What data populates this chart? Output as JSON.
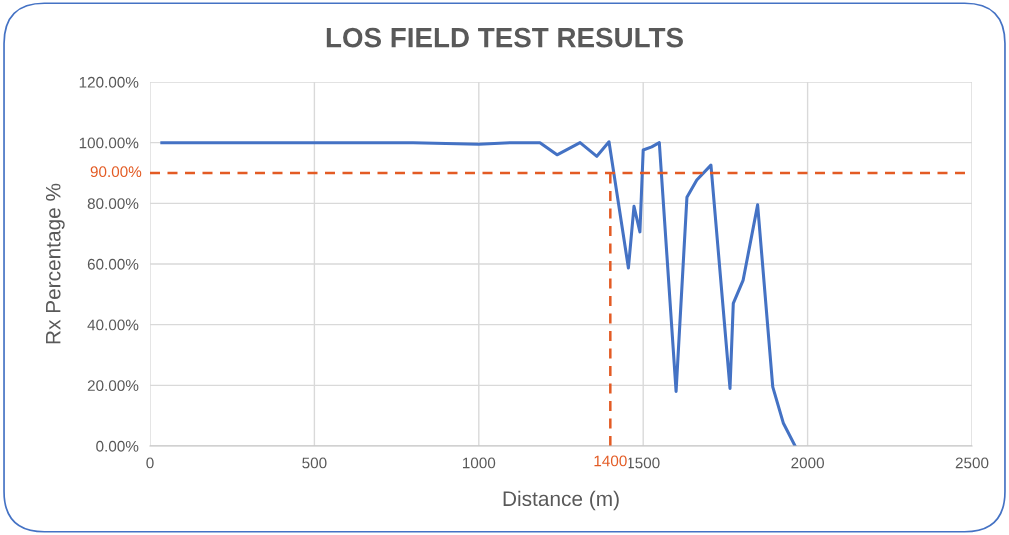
{
  "chart_data": {
    "type": "line",
    "title": "LOS FIELD TEST RESULTS",
    "xlabel": "Distance (m)",
    "ylabel": "Rx Percentage %",
    "x": [
      36,
      200,
      400,
      600,
      800,
      1000,
      1100,
      1186,
      1238,
      1308,
      1359,
      1396,
      1455,
      1472,
      1490,
      1500,
      1526,
      1549,
      1600,
      1633,
      1663,
      1706,
      1764,
      1774,
      1804,
      1848,
      1894,
      1926,
      1962
    ],
    "series": [
      {
        "color": "#4472c4",
        "values": [
          100,
          100,
          100,
          100,
          100,
          99.5,
          100,
          100,
          96,
          100,
          95.5,
          100.3,
          58.7,
          79,
          70.6,
          97.6,
          98.6,
          100,
          18,
          82,
          87.7,
          92.6,
          19,
          47,
          54.7,
          79.5,
          19.5,
          7.6,
          0
        ]
      }
    ],
    "xlim": [
      0,
      2500
    ],
    "xticks": [
      0,
      500,
      1000,
      1500,
      2000,
      2500
    ],
    "ylim": [
      0,
      120
    ],
    "yticks": [
      {
        "value": 0,
        "label": "0.00%"
      },
      {
        "value": 20,
        "label": "20.00%"
      },
      {
        "value": 40,
        "label": "40.00%"
      },
      {
        "value": 60,
        "label": "60.00%"
      },
      {
        "value": 80,
        "label": "80.00%"
      },
      {
        "value": 100,
        "label": "100.00%"
      },
      {
        "value": 120,
        "label": "120.00%"
      }
    ],
    "ref_lines": [
      {
        "axis": "y",
        "value": 90,
        "label": "90.00%",
        "color": "#e35b24",
        "line_style": "dashed"
      },
      {
        "axis": "x",
        "value": 1400,
        "label": "1400",
        "color": "#e35b24",
        "line_style": "dashed"
      }
    ],
    "grid": true,
    "marker": "none",
    "line_style": "solid",
    "legend": false
  }
}
